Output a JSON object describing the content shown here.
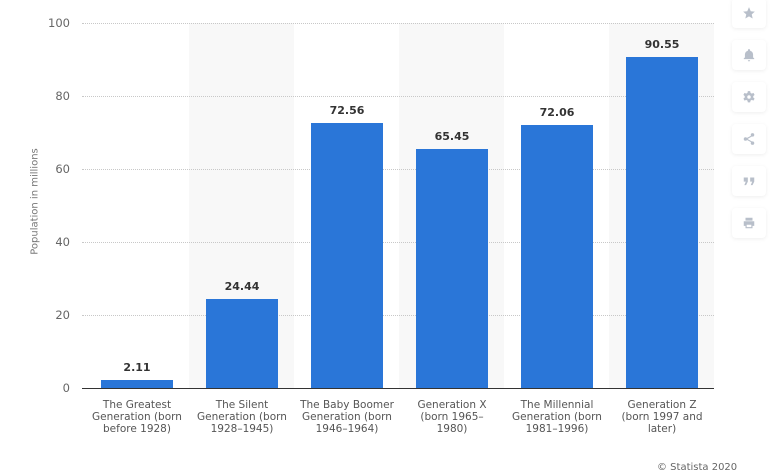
{
  "chart_data": {
    "type": "bar",
    "title": "",
    "xlabel": "",
    "ylabel": "Population in millions",
    "ylim": [
      0,
      100
    ],
    "yticks": [
      "0",
      "20",
      "40",
      "60",
      "80",
      "100"
    ],
    "grid": true,
    "legend": null,
    "categories": [
      "The Greatest Generation (born before 1928)",
      "The Silent Generation (born 1928–1945)",
      "The Baby Boomer Generation (born 1946–1964)",
      "Generation X (born 1965–1980)",
      "The Millennial Generation (born 1981–1996)",
      "Generation Z (born 1997 and later)"
    ],
    "values": [
      2.11,
      24.44,
      72.56,
      65.45,
      72.06,
      90.55
    ],
    "value_labels": [
      "2.11",
      "24.44",
      "72.56",
      "65.45",
      "72.06",
      "90.55"
    ],
    "category_lines": [
      [
        "The Greatest",
        "Generation (born",
        "before 1928)"
      ],
      [
        "The Silent",
        "Generation (born",
        "1928–1945)"
      ],
      [
        "The Baby Boomer",
        "Generation (born",
        "1946–1964)"
      ],
      [
        "Generation X",
        "(born 1965–",
        "1980)"
      ],
      [
        "The Millennial",
        "Generation (born",
        "1981–1996)"
      ],
      [
        "Generation Z",
        "(born 1997 and",
        "later)"
      ]
    ],
    "bar_color": "#2a76d8"
  },
  "credit": "© Statista 2020",
  "sidebar": {
    "buttons": [
      {
        "name": "favorite-button",
        "icon": "star-icon"
      },
      {
        "name": "notification-button",
        "icon": "bell-icon"
      },
      {
        "name": "settings-button",
        "icon": "gear-icon"
      },
      {
        "name": "share-button",
        "icon": "share-icon"
      },
      {
        "name": "cite-button",
        "icon": "quote-icon"
      },
      {
        "name": "print-button",
        "icon": "printer-icon"
      }
    ]
  }
}
